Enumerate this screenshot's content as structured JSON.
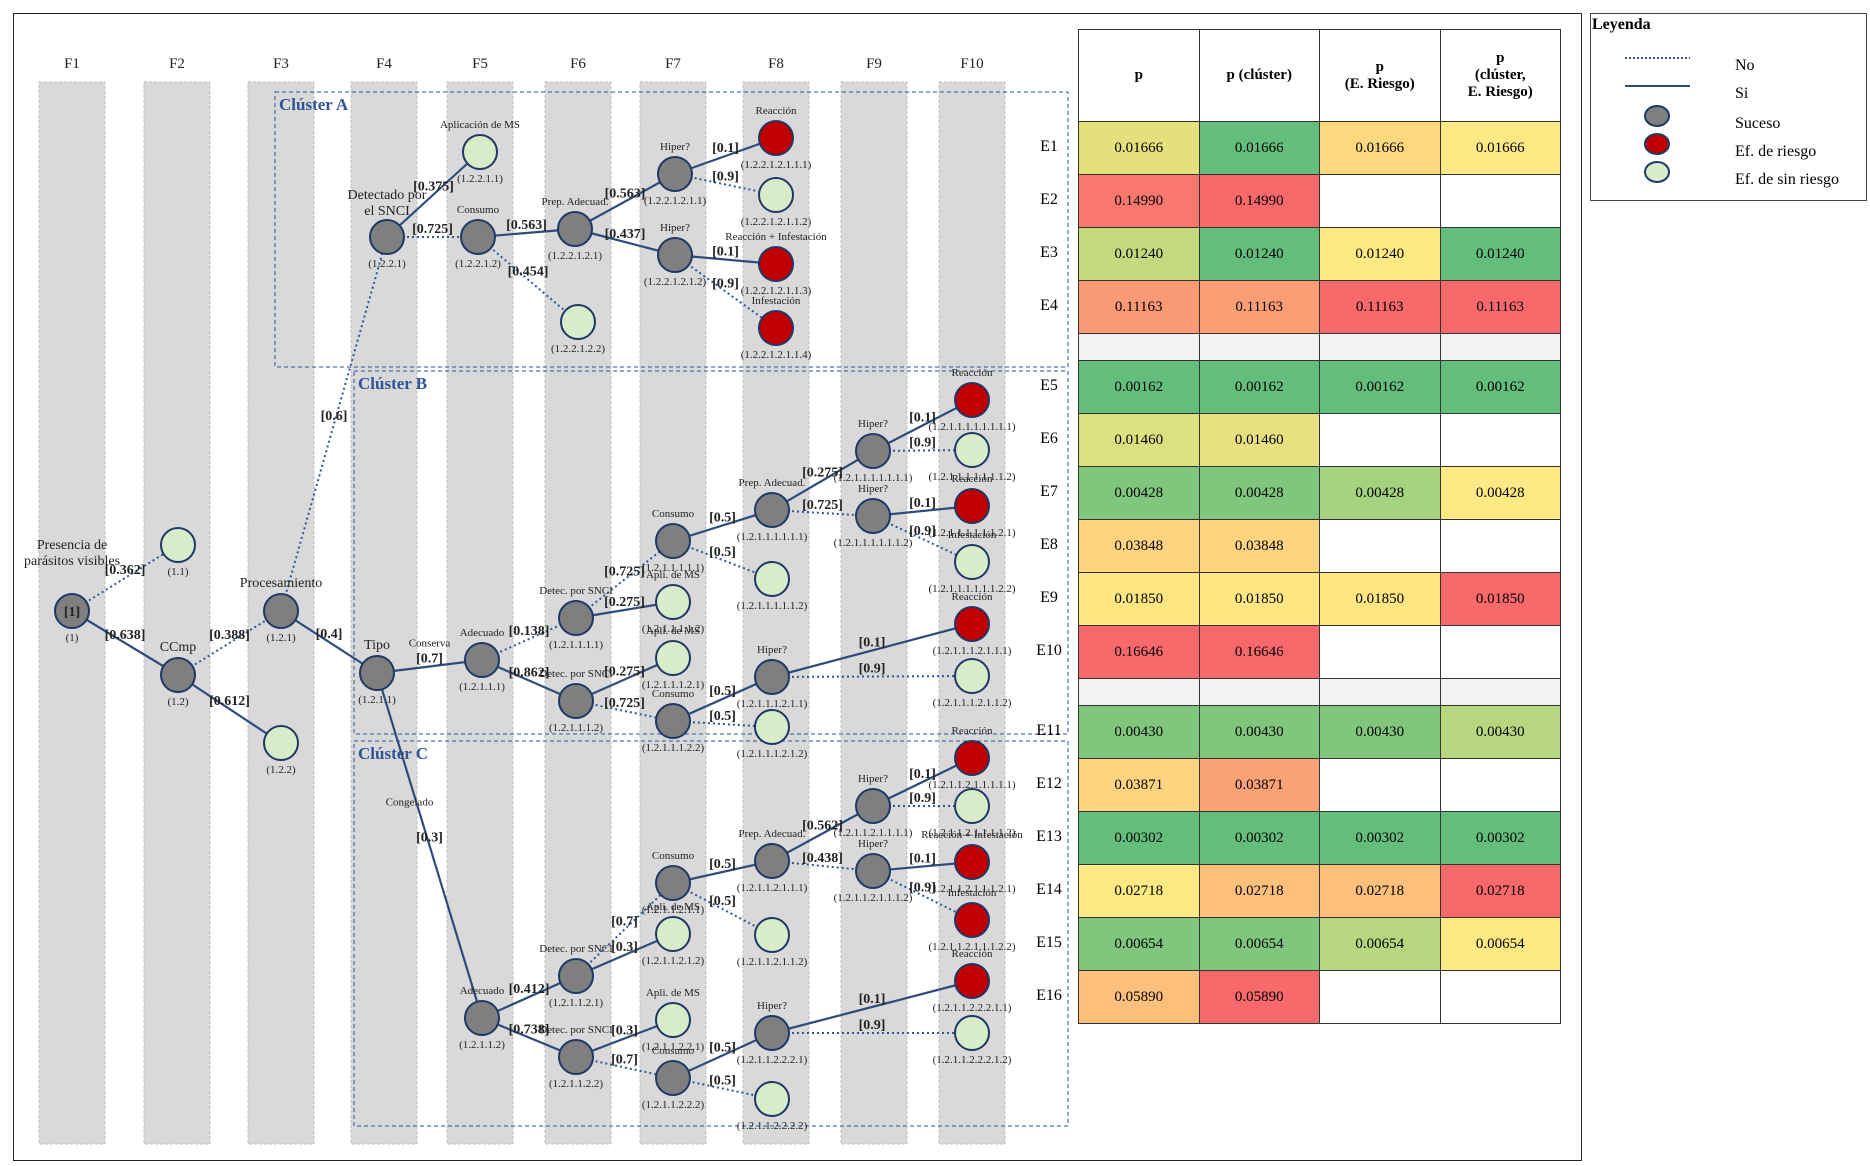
{
  "columns": [
    "F1",
    "F2",
    "F3",
    "F4",
    "F5",
    "F6",
    "F7",
    "F8",
    "F9",
    "F10"
  ],
  "clusters": [
    "Clúster A",
    "Clúster B",
    "Clúster C"
  ],
  "tree": {
    "nodes": [
      {
        "id": "root",
        "name": "[1]",
        "code": "(1)",
        "label": "Presencia de parásitos visibles",
        "type": "suceso"
      },
      {
        "id": "n11",
        "code": "(1.1)",
        "type": "sinriesgo"
      },
      {
        "id": "n12",
        "code": "(1.2)",
        "label": "CCmp",
        "type": "suceso"
      },
      {
        "id": "n121",
        "code": "(1.2.1)",
        "label": "Procesamiento",
        "type": "suceso"
      },
      {
        "id": "n122",
        "code": "(1.2.2)",
        "type": "sinriesgo"
      },
      {
        "id": "A1",
        "code": "(1.2.2.1)",
        "label": "Detectado por el SNCI",
        "type": "suceso"
      },
      {
        "id": "A2",
        "code": "(1.2.2.1.1)",
        "label": "Aplicación de MS",
        "type": "sinriesgo"
      },
      {
        "id": "A3",
        "code": "(1.2.2.1.2)",
        "label": "Consumo",
        "type": "suceso"
      },
      {
        "id": "A4",
        "code": "(1.2.2.1.2.1)",
        "label": "Prep. Adecuad.",
        "type": "suceso"
      },
      {
        "id": "A5",
        "code": "(1.2.2.1.2.2)",
        "type": "sinriesgo"
      },
      {
        "id": "A6",
        "code": "(1.2.2.1.2.1.1)",
        "label": "Hiper?",
        "type": "suceso"
      },
      {
        "id": "A7",
        "code": "(1.2.2.1.2.1.2)",
        "label": "Hiper?",
        "type": "suceso"
      },
      {
        "id": "A8",
        "code": "(1.2.2.1.2.1.1.1)",
        "label": "Reacción",
        "type": "riesgo"
      },
      {
        "id": "A9",
        "code": "(1.2.2.1.2.1.1.2)",
        "type": "sinriesgo"
      },
      {
        "id": "A10",
        "code": "(1.2.2.1.2.1.1.3)",
        "label": "Reacción + Infestación",
        "type": "riesgo"
      },
      {
        "id": "A11",
        "code": "(1.2.2.1.2.1.1.4)",
        "label": "Infestación",
        "type": "riesgo"
      },
      {
        "id": "T",
        "code": "(1.2.1.1)",
        "label": "Tipo",
        "type": "suceso"
      },
      {
        "id": "B1",
        "code": "(1.2.1.1.1)",
        "label": "Adecuado",
        "type": "suceso"
      },
      {
        "id": "B2",
        "code": "(1.2.1.1.1.1)",
        "label": "Detec. por SNCI",
        "type": "suceso"
      },
      {
        "id": "B3",
        "code": "(1.2.1.1.1.2)",
        "label": "Detec. por SNCI",
        "type": "suceso"
      },
      {
        "id": "B4",
        "code": "(1.2.1.1.1.1.1)",
        "label": "Consumo",
        "type": "suceso"
      },
      {
        "id": "B5",
        "code": "(1.2.1.1.1.1.2)",
        "label": "Apli. de MS",
        "type": "sinriesgo"
      },
      {
        "id": "B6",
        "code": "(1.2.1.1.1.2.1)",
        "label": "Apli. de MS",
        "type": "sinriesgo"
      },
      {
        "id": "B7",
        "code": "(1.2.1.1.1.2.2)",
        "label": "Consumo",
        "type": "suceso"
      },
      {
        "id": "B8",
        "code": "(1.2.1.1.1.1.1.1)",
        "label": "Prep. Adecuad.",
        "type": "suceso"
      },
      {
        "id": "B9",
        "code": "(1.2.1.1.1.1.1.2)",
        "type": "sinriesgo"
      },
      {
        "id": "B10",
        "code": "(1.2.1.1.1.2.1.1)",
        "label": "Hiper?",
        "type": "suceso"
      },
      {
        "id": "B11",
        "code": "(1.2.1.1.1.2.1.2)",
        "type": "sinriesgo"
      },
      {
        "id": "B12",
        "code": "(1.2.1.1.1.1.1.1.1)",
        "label": "Hiper?",
        "type": "suceso"
      },
      {
        "id": "B13",
        "code": "(1.2.1.1.1.1.1.1.2)",
        "label": "Hiper?",
        "type": "suceso"
      },
      {
        "id": "B14",
        "code": "(1.2.1.1.1.1.1.1.1.1)",
        "label": "Reacción",
        "type": "riesgo"
      },
      {
        "id": "B15",
        "code": "(1.2.1.1.1.1.1.1.1.2)",
        "type": "sinriesgo"
      },
      {
        "id": "B16",
        "code": "(1.2.1.1.1.1.1.1.2.1)",
        "label": "Reacción",
        "type": "riesgo"
      },
      {
        "id": "B17",
        "code": "(1.2.1.1.1.1.1.1.2.2)",
        "label": "Infestación",
        "type": "sinriesgo"
      },
      {
        "id": "B18",
        "code": "(1.2.1.1.1.2.1.1.1)",
        "label": "Reacción",
        "type": "riesgo"
      },
      {
        "id": "B19",
        "code": "(1.2.1.1.1.2.1.1.2)",
        "type": "sinriesgo"
      },
      {
        "id": "C1",
        "code": "(1.2.1.1.2)",
        "label": "Adecuado",
        "type": "suceso"
      },
      {
        "id": "C2",
        "code": "(1.2.1.1.2.1)",
        "label": "Detec. por SNCI",
        "type": "suceso"
      },
      {
        "id": "C3",
        "code": "(1.2.1.1.2.2)",
        "label": "Detec. por SNCI",
        "type": "suceso"
      },
      {
        "id": "C4",
        "code": "(1.2.1.1.2.1.1)",
        "label": "Consumo",
        "type": "suceso"
      },
      {
        "id": "C5",
        "code": "(1.2.1.1.2.1.2)",
        "label": "Apli. de MS",
        "type": "sinriesgo"
      },
      {
        "id": "C6",
        "code": "(1.2.1.1.2.2.1)",
        "label": "Apli. de MS",
        "type": "sinriesgo"
      },
      {
        "id": "C7",
        "code": "(1.2.1.1.2.2.2)",
        "label": "Consumo",
        "type": "suceso"
      },
      {
        "id": "C8",
        "code": "(1.2.1.1.2.1.1.1)",
        "label": "Prep. Adecuad.",
        "type": "suceso"
      },
      {
        "id": "C9",
        "code": "(1.2.1.1.2.1.1.2)",
        "type": "sinriesgo"
      },
      {
        "id": "C10",
        "code": "(1.2.1.1.2.2.2.1)",
        "label": "Hiper?",
        "type": "suceso"
      },
      {
        "id": "C11",
        "code": "(1.2.1.1.2.2.2.2)",
        "type": "sinriesgo"
      },
      {
        "id": "C12",
        "code": "(1.2.1.1.2.1.1.1.1)",
        "label": "Hiper?",
        "type": "suceso"
      },
      {
        "id": "C13",
        "code": "(1.2.1.1.2.1.1.1.2)",
        "label": "Hiper?",
        "type": "suceso"
      },
      {
        "id": "C14",
        "code": "(1.2.1.1.2.1.1.1.1.1)",
        "label": "Reacción",
        "type": "riesgo"
      },
      {
        "id": "C15",
        "code": "(1.2.1.1.2.1.1.1.1.2)",
        "type": "sinriesgo"
      },
      {
        "id": "C16",
        "code": "(1.2.1.1.2.1.1.1.2.1)",
        "label": "Reacción + Infestación",
        "type": "riesgo"
      },
      {
        "id": "C17",
        "code": "(1.2.1.1.2.1.1.1.2.2)",
        "label": "Infestación",
        "type": "riesgo"
      },
      {
        "id": "C18",
        "code": "(1.2.1.1.2.2.2.1.1)",
        "label": "Reacción",
        "type": "riesgo"
      },
      {
        "id": "C19",
        "code": "(1.2.1.1.2.2.2.1.2)",
        "type": "sinriesgo"
      }
    ],
    "edges": [
      {
        "from": "root",
        "to": "n11",
        "prob": "[0.362]",
        "kind": "no"
      },
      {
        "from": "root",
        "to": "n12",
        "prob": "[0.638]",
        "kind": "si"
      },
      {
        "from": "n12",
        "to": "n121",
        "prob": "[0.388]",
        "kind": "no"
      },
      {
        "from": "n12",
        "to": "n122",
        "prob": "[0.612]",
        "kind": "si"
      },
      {
        "from": "n121",
        "to": "A1",
        "prob": "[0.6]",
        "kind": "no"
      },
      {
        "from": "n121",
        "to": "T",
        "prob": "[0.4]",
        "kind": "si"
      },
      {
        "from": "A1",
        "to": "A2",
        "prob": "[0.375]",
        "kind": "si"
      },
      {
        "from": "A1",
        "to": "A3",
        "prob": "[0.725]",
        "kind": "no"
      },
      {
        "from": "A3",
        "to": "A4",
        "prob": "[0.563]",
        "kind": "si"
      },
      {
        "from": "A3",
        "to": "A5",
        "prob": "[0.454]",
        "kind": "no"
      },
      {
        "from": "A4",
        "to": "A6",
        "prob": "[0.563]",
        "kind": "si"
      },
      {
        "from": "A4",
        "to": "A7",
        "prob": "[0.437]",
        "kind": "si"
      },
      {
        "from": "A6",
        "to": "A8",
        "prob": "[0.1]",
        "kind": "si"
      },
      {
        "from": "A6",
        "to": "A9",
        "prob": "[0.9]",
        "kind": "no"
      },
      {
        "from": "A7",
        "to": "A10",
        "prob": "[0.1]",
        "kind": "si"
      },
      {
        "from": "A7",
        "to": "A11",
        "prob": "[0.9]",
        "kind": "no"
      },
      {
        "from": "T",
        "to": "B1",
        "prob": "[0.7]",
        "kind": "si",
        "label": "Conserva"
      },
      {
        "from": "T",
        "to": "C1",
        "prob": "[0.3]",
        "kind": "si",
        "label": "Congelado"
      },
      {
        "from": "B1",
        "to": "B2",
        "prob": "[0.138]",
        "kind": "no"
      },
      {
        "from": "B1",
        "to": "B3",
        "prob": "[0.862]",
        "kind": "si"
      },
      {
        "from": "B2",
        "to": "B4",
        "prob": "[0.725]",
        "kind": "no"
      },
      {
        "from": "B2",
        "to": "B5",
        "prob": "[0.275]",
        "kind": "si"
      },
      {
        "from": "B3",
        "to": "B6",
        "prob": "[0.275]",
        "kind": "si"
      },
      {
        "from": "B3",
        "to": "B7",
        "prob": "[0.725]",
        "kind": "no"
      },
      {
        "from": "B4",
        "to": "B8",
        "prob": "[0.5]",
        "kind": "si"
      },
      {
        "from": "B4",
        "to": "B9",
        "prob": "[0.5]",
        "kind": "no"
      },
      {
        "from": "B7",
        "to": "B10",
        "prob": "[0.5]",
        "kind": "si"
      },
      {
        "from": "B7",
        "to": "B11",
        "prob": "[0.5]",
        "kind": "no"
      },
      {
        "from": "B8",
        "to": "B12",
        "prob": "[0.275]",
        "kind": "si"
      },
      {
        "from": "B8",
        "to": "B13",
        "prob": "[0.725]",
        "kind": "no"
      },
      {
        "from": "B12",
        "to": "B14",
        "prob": "[0.1]",
        "kind": "si"
      },
      {
        "from": "B12",
        "to": "B15",
        "prob": "[0.9]",
        "kind": "no"
      },
      {
        "from": "B13",
        "to": "B16",
        "prob": "[0.1]",
        "kind": "si"
      },
      {
        "from": "B13",
        "to": "B17",
        "prob": "[0.9]",
        "kind": "no"
      },
      {
        "from": "B10",
        "to": "B18",
        "prob": "[0.1]",
        "kind": "si"
      },
      {
        "from": "B10",
        "to": "B19",
        "prob": "[0.9]",
        "kind": "no"
      },
      {
        "from": "C1",
        "to": "C2",
        "prob": "[0.412]",
        "kind": "si"
      },
      {
        "from": "C1",
        "to": "C3",
        "prob": "[0.738]",
        "kind": "si"
      },
      {
        "from": "C2",
        "to": "C4",
        "prob": "[0.7]",
        "kind": "no"
      },
      {
        "from": "C2",
        "to": "C5",
        "prob": "[0.3]",
        "kind": "si"
      },
      {
        "from": "C3",
        "to": "C6",
        "prob": "[0.3]",
        "kind": "si"
      },
      {
        "from": "C3",
        "to": "C7",
        "prob": "[0.7]",
        "kind": "no"
      },
      {
        "from": "C4",
        "to": "C8",
        "prob": "[0.5]",
        "kind": "si"
      },
      {
        "from": "C4",
        "to": "C9",
        "prob": "[0.5]",
        "kind": "no"
      },
      {
        "from": "C7",
        "to": "C10",
        "prob": "[0.5]",
        "kind": "si"
      },
      {
        "from": "C7",
        "to": "C11",
        "prob": "[0.5]",
        "kind": "no"
      },
      {
        "from": "C8",
        "to": "C12",
        "prob": "[0.562]",
        "kind": "si"
      },
      {
        "from": "C8",
        "to": "C13",
        "prob": "[0.438]",
        "kind": "no"
      },
      {
        "from": "C12",
        "to": "C14",
        "prob": "[0.1]",
        "kind": "si"
      },
      {
        "from": "C12",
        "to": "C15",
        "prob": "[0.9]",
        "kind": "no"
      },
      {
        "from": "C13",
        "to": "C16",
        "prob": "[0.1]",
        "kind": "si"
      },
      {
        "from": "C13",
        "to": "C17",
        "prob": "[0.9]",
        "kind": "no"
      },
      {
        "from": "C10",
        "to": "C18",
        "prob": "[0.1]",
        "kind": "si"
      },
      {
        "from": "C10",
        "to": "C19",
        "prob": "[0.9]",
        "kind": "no"
      }
    ]
  },
  "table": {
    "headers": [
      "p",
      "p (clúster)",
      "p\n(E. Riesgo)",
      "p\n(clúster,\nE. Riesgo)"
    ],
    "rows": [
      {
        "e": "E1",
        "cells": [
          [
            "0.01666",
            "#e4e07c"
          ],
          [
            "0.01666",
            "#63be7b"
          ],
          [
            "0.01666",
            "#fed87f"
          ],
          [
            "0.01666",
            "#ffe984"
          ]
        ]
      },
      {
        "e": "E2",
        "cells": [
          [
            "0.14990",
            "#f8786d"
          ],
          [
            "0.14990",
            "#f8696b"
          ],
          [
            "",
            ""
          ],
          [
            "",
            ""
          ]
        ]
      },
      {
        "e": "E3",
        "cells": [
          [
            "0.01240",
            "#c5d87f"
          ],
          [
            "0.01240",
            "#63be7b"
          ],
          [
            "0.01240",
            "#ffe984"
          ],
          [
            "0.01240",
            "#63be7b"
          ]
        ]
      },
      {
        "e": "E4",
        "cells": [
          [
            "0.11163",
            "#fa9a75"
          ],
          [
            "0.11163",
            "#fb9e76"
          ],
          [
            "0.11163",
            "#f8696b"
          ],
          [
            "0.11163",
            "#f8696b"
          ]
        ]
      },
      {
        "e": "E5",
        "cells": [
          [
            "0.00162",
            "#63be7b"
          ],
          [
            "0.00162",
            "#63be7b"
          ],
          [
            "0.00162",
            "#63be7b"
          ],
          [
            "0.00162",
            "#63be7b"
          ]
        ]
      },
      {
        "e": "E6",
        "cells": [
          [
            "0.01460",
            "#dce07f"
          ],
          [
            "0.01460",
            "#e7e182"
          ],
          [
            "",
            ""
          ],
          [
            "",
            ""
          ]
        ]
      },
      {
        "e": "E7",
        "cells": [
          [
            "0.00428",
            "#80c77d"
          ],
          [
            "0.00428",
            "#80c77d"
          ],
          [
            "0.00428",
            "#a4d27f"
          ],
          [
            "0.00428",
            "#ffe984"
          ]
        ]
      },
      {
        "e": "E8",
        "cells": [
          [
            "0.03848",
            "#fed480"
          ],
          [
            "0.03848",
            "#fed480"
          ],
          [
            "",
            ""
          ],
          [
            "",
            ""
          ]
        ]
      },
      {
        "e": "E9",
        "cells": [
          [
            "0.01850",
            "#fee683"
          ],
          [
            "0.01850",
            "#fee683"
          ],
          [
            "0.01850",
            "#fee683"
          ],
          [
            "0.01850",
            "#f8696b"
          ]
        ]
      },
      {
        "e": "E10",
        "cells": [
          [
            "0.16646",
            "#f8696b"
          ],
          [
            "0.16646",
            "#f8696b"
          ],
          [
            "",
            ""
          ],
          [
            "",
            ""
          ]
        ]
      },
      {
        "e": "E11",
        "cells": [
          [
            "0.00430",
            "#80c77d"
          ],
          [
            "0.00430",
            "#80c77d"
          ],
          [
            "0.00430",
            "#80c77d"
          ],
          [
            "0.00430",
            "#b6d680"
          ]
        ]
      },
      {
        "e": "E12",
        "cells": [
          [
            "0.03871",
            "#fed480"
          ],
          [
            "0.03871",
            "#fba276"
          ],
          [
            "",
            ""
          ],
          [
            "",
            ""
          ]
        ]
      },
      {
        "e": "E13",
        "cells": [
          [
            "0.00302",
            "#63be7b"
          ],
          [
            "0.00302",
            "#63be7b"
          ],
          [
            "0.00302",
            "#63be7b"
          ],
          [
            "0.00302",
            "#63be7b"
          ]
        ]
      },
      {
        "e": "E14",
        "cells": [
          [
            "0.02718",
            "#ffe984"
          ],
          [
            "0.02718",
            "#fdc07c"
          ],
          [
            "0.02718",
            "#fdc07c"
          ],
          [
            "0.02718",
            "#f8696b"
          ]
        ]
      },
      {
        "e": "E15",
        "cells": [
          [
            "0.00654",
            "#80c77d"
          ],
          [
            "0.00654",
            "#80c77d"
          ],
          [
            "0.00654",
            "#b6d680"
          ],
          [
            "0.00654",
            "#ffe984"
          ]
        ]
      },
      {
        "e": "E16",
        "cells": [
          [
            "0.05890",
            "#fdc07c"
          ],
          [
            "0.05890",
            "#f8696b"
          ],
          [
            "",
            ""
          ],
          [
            "",
            ""
          ]
        ]
      }
    ]
  },
  "legend": {
    "title": "Leyenda",
    "items": [
      {
        "label": "No",
        "kind": "dotted-line"
      },
      {
        "label": "Si",
        "kind": "solid-line"
      },
      {
        "label": "Suceso",
        "kind": "node",
        "color": "#7f7f7f"
      },
      {
        "label": "Ef. de riesgo",
        "kind": "node",
        "color": "#c00000"
      },
      {
        "label": "Ef. de sin riesgo",
        "kind": "node",
        "color": "#d9ecc9"
      }
    ]
  }
}
